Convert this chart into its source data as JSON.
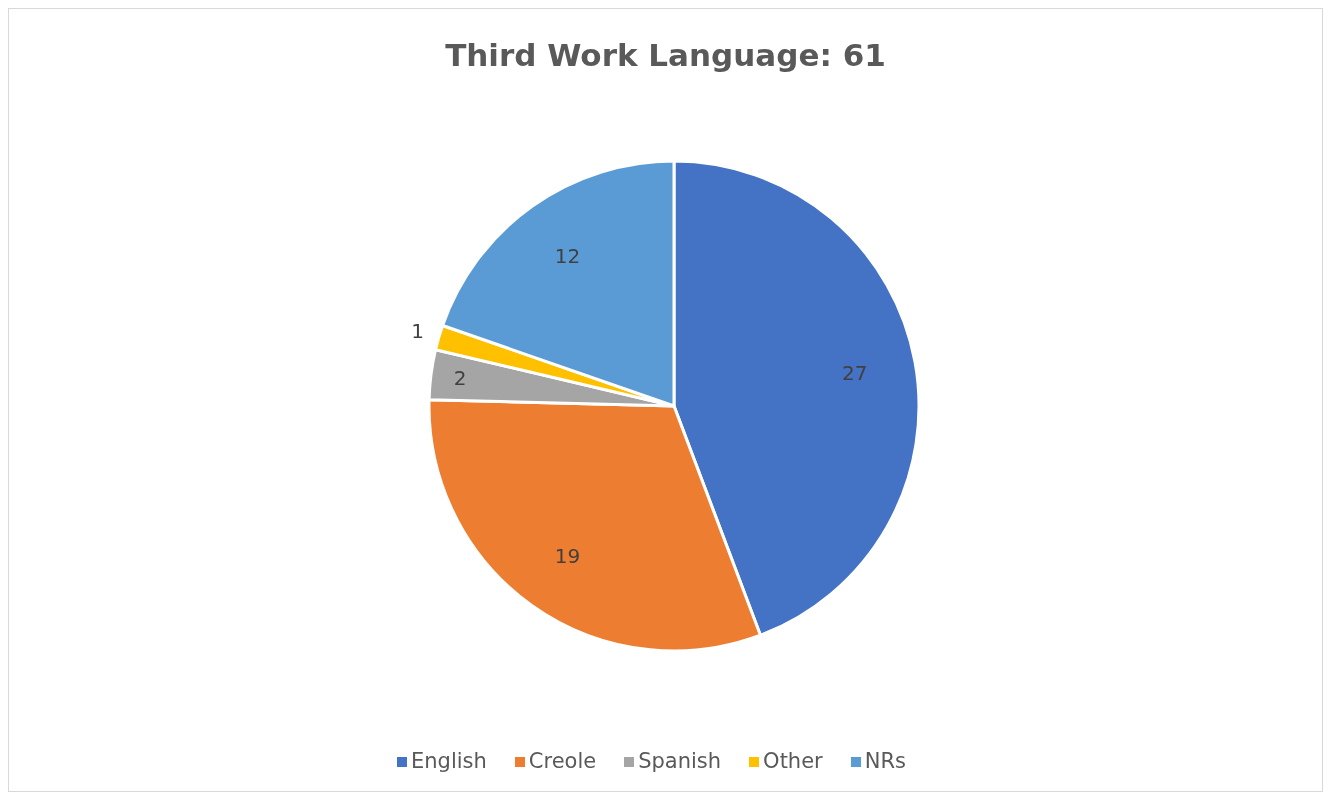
{
  "chart_data": {
    "type": "pie",
    "title": "Third Work Language: 61",
    "categories": [
      "English",
      "Creole",
      "Spanish",
      "Other",
      "NRs"
    ],
    "values": [
      27,
      19,
      2,
      1,
      12
    ],
    "colors": [
      "#4472c4",
      "#ed7d31",
      "#a5a5a5",
      "#ffc000",
      "#5b9bd5"
    ],
    "data_labels": true,
    "legend": "bottom"
  }
}
